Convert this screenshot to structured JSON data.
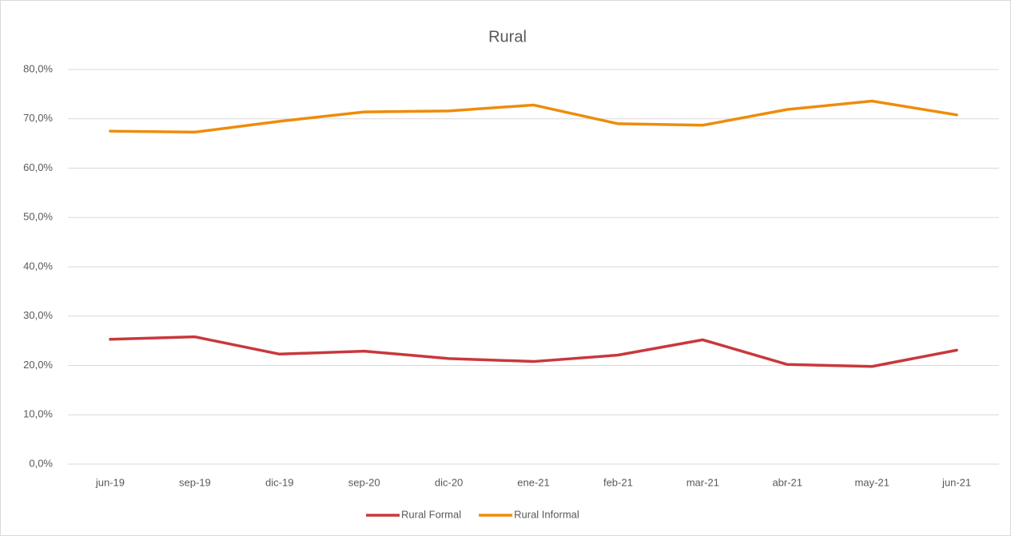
{
  "chart_data": {
    "type": "line",
    "title": "Rural",
    "categories": [
      "jun-19",
      "sep-19",
      "dic-19",
      "sep-20",
      "dic-20",
      "ene-21",
      "feb-21",
      "mar-21",
      "abr-21",
      "may-21",
      "jun-21"
    ],
    "series": [
      {
        "name": "Rural Formal",
        "color": "#c8383c",
        "values": [
          25.3,
          25.8,
          22.3,
          22.9,
          21.4,
          20.8,
          22.1,
          25.2,
          20.2,
          19.8,
          23.1
        ]
      },
      {
        "name": "Rural Informal",
        "color": "#ee8c0a",
        "values": [
          67.5,
          67.3,
          69.5,
          71.4,
          71.6,
          72.8,
          69.0,
          68.7,
          71.9,
          73.6,
          70.8
        ]
      }
    ],
    "ylim": [
      0,
      80
    ],
    "yticks": [
      {
        "value": 0,
        "label": "0,0%"
      },
      {
        "value": 10,
        "label": "10,0%"
      },
      {
        "value": 20,
        "label": "20,0%"
      },
      {
        "value": 30,
        "label": "30,0%"
      },
      {
        "value": 40,
        "label": "40,0%"
      },
      {
        "value": 50,
        "label": "50,0%"
      },
      {
        "value": 60,
        "label": "60,0%"
      },
      {
        "value": 70,
        "label": "70,0%"
      },
      {
        "value": 80,
        "label": "80,0%"
      }
    ],
    "grid": true,
    "legend": "bottom"
  }
}
